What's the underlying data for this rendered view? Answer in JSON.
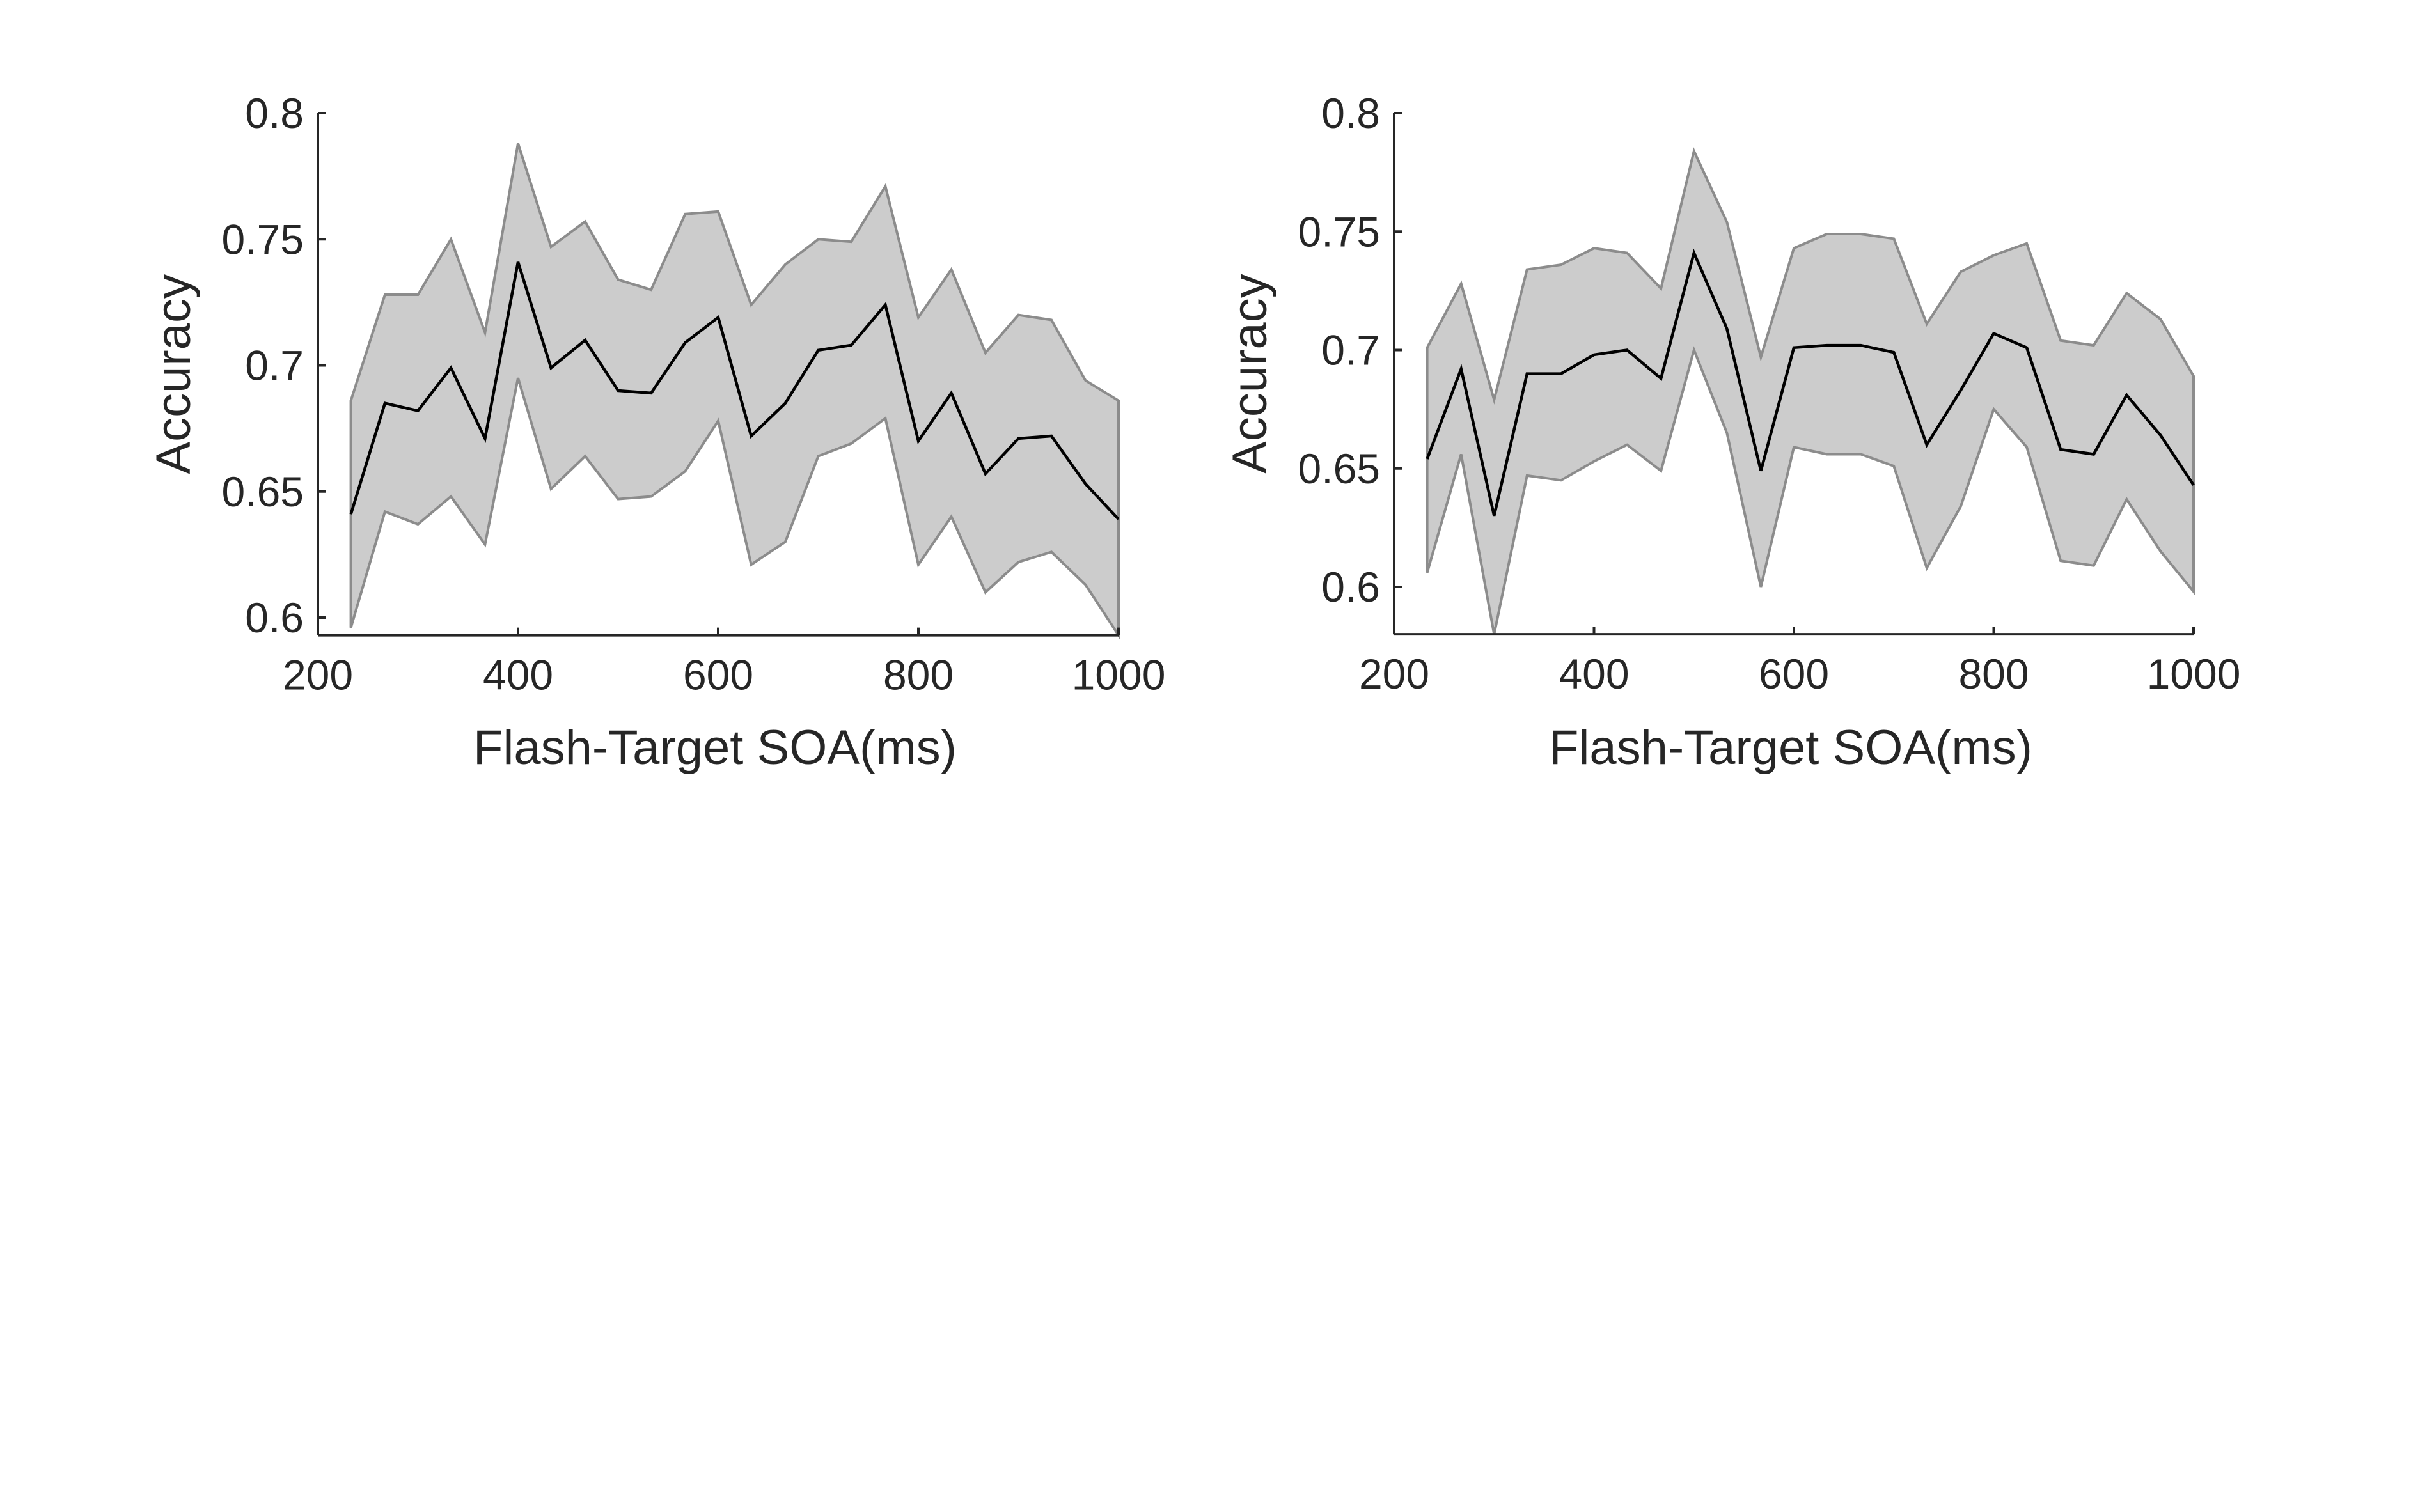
{
  "chart_data": [
    {
      "type": "line",
      "title": "",
      "xlabel": "Flash-Target SOA(ms)",
      "ylabel": "Accuracy",
      "xlim": [
        233,
        1000
      ],
      "ylim": [
        0.593,
        0.8
      ],
      "xticks": [
        200,
        400,
        600,
        800,
        1000
      ],
      "xtick_labels": [
        "200",
        "400",
        "600",
        "800",
        "1000"
      ],
      "yticks": [
        0.6,
        0.65,
        0.7,
        0.75,
        0.8
      ],
      "ytick_labels": [
        "0.6",
        "0.65",
        "0.7",
        "0.75",
        "0.8"
      ],
      "grid": false,
      "x": [
        233,
        267,
        300,
        333,
        367,
        400,
        433,
        467,
        500,
        533,
        567,
        600,
        633,
        667,
        700,
        733,
        767,
        800,
        833,
        867,
        900,
        933,
        967,
        1000
      ],
      "series": [
        {
          "values": [
            0.641,
            0.685,
            0.682,
            0.699,
            0.671,
            0.741,
            0.699,
            0.71,
            0.69,
            0.689,
            0.709,
            0.719,
            0.672,
            0.685,
            0.706,
            0.708,
            0.724,
            0.67,
            0.689,
            0.657,
            0.671,
            0.672,
            0.653,
            0.639
          ]
        }
      ],
      "band": {
        "upper": [
          0.686,
          0.728,
          0.728,
          0.75,
          0.713,
          0.788,
          0.747,
          0.757,
          0.734,
          0.73,
          0.76,
          0.761,
          0.724,
          0.74,
          0.75,
          0.749,
          0.771,
          0.719,
          0.738,
          0.705,
          0.72,
          0.718,
          0.694,
          0.686
        ],
        "lower": [
          0.596,
          0.642,
          0.637,
          0.648,
          0.629,
          0.695,
          0.651,
          0.664,
          0.647,
          0.648,
          0.658,
          0.678,
          0.621,
          0.63,
          0.664,
          0.669,
          0.679,
          0.621,
          0.64,
          0.61,
          0.622,
          0.626,
          0.613,
          0.593
        ]
      },
      "colors": {
        "band_fill": "#cccccc",
        "band_edge": "#8c8c8c",
        "line": "#000000",
        "axis": "#262626"
      }
    },
    {
      "type": "line",
      "title": "",
      "xlabel": "Flash-Target SOA(ms)",
      "ylabel": "Accuracy",
      "xlim": [
        233,
        1000
      ],
      "ylim": [
        0.58,
        0.8
      ],
      "xticks": [
        200,
        400,
        600,
        800,
        1000
      ],
      "xtick_labels": [
        "200",
        "400",
        "600",
        "800",
        "1000"
      ],
      "yticks": [
        0.6,
        0.65,
        0.7,
        0.75,
        0.8
      ],
      "ytick_labels": [
        "0.6",
        "0.65",
        "0.7",
        "0.75",
        "0.8"
      ],
      "grid": false,
      "x": [
        233,
        267,
        300,
        333,
        367,
        400,
        433,
        467,
        500,
        533,
        567,
        600,
        633,
        667,
        700,
        733,
        767,
        800,
        833,
        867,
        900,
        933,
        967,
        1000
      ],
      "series": [
        {
          "values": [
            0.654,
            0.692,
            0.63,
            0.69,
            0.69,
            0.698,
            0.7,
            0.688,
            0.741,
            0.709,
            0.649,
            0.701,
            0.702,
            0.702,
            0.699,
            0.66,
            0.683,
            0.707,
            0.701,
            0.658,
            0.656,
            0.681,
            0.664,
            0.643
          ]
        }
      ],
      "band": {
        "upper": [
          0.701,
          0.728,
          0.679,
          0.734,
          0.736,
          0.743,
          0.741,
          0.726,
          0.784,
          0.754,
          0.697,
          0.743,
          0.749,
          0.749,
          0.747,
          0.711,
          0.733,
          0.74,
          0.745,
          0.704,
          0.702,
          0.724,
          0.713,
          0.689
        ],
        "lower": [
          0.606,
          0.656,
          0.58,
          0.647,
          0.645,
          0.653,
          0.66,
          0.649,
          0.7,
          0.665,
          0.6,
          0.659,
          0.656,
          0.656,
          0.651,
          0.608,
          0.634,
          0.675,
          0.659,
          0.611,
          0.609,
          0.637,
          0.615,
          0.598
        ]
      },
      "colors": {
        "band_fill": "#cccccc",
        "band_edge": "#8c8c8c",
        "line": "#000000",
        "axis": "#262626"
      }
    }
  ]
}
